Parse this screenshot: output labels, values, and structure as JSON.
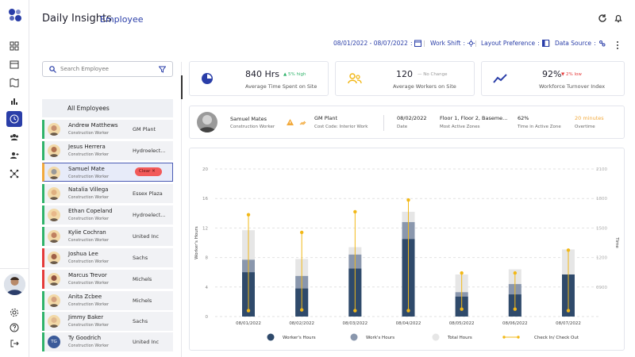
{
  "header": {
    "title": "Daily Insights",
    "subtitle": "Employee"
  },
  "toolbar": {
    "date_range": "08/01/2022 - 08/07/2022",
    "work_shift": "Work Shift",
    "layout_pref": "Layout Preference",
    "data_source": "Data Source"
  },
  "search": {
    "placeholder": "Search Employee"
  },
  "list": {
    "all_label": "All Employees"
  },
  "employees": [
    {
      "name": "Andrew Matthews",
      "role": "Construction Worker",
      "company": "GM Plant",
      "status": "green"
    },
    {
      "name": "Jesus Herrera",
      "role": "Construction Worker",
      "company": "Hydroelect...",
      "status": "green"
    },
    {
      "name": "Samuel Mate",
      "role": "Construction Worker",
      "company": "",
      "status": "orange",
      "selected": true,
      "clear_label": "Clear"
    },
    {
      "name": "Natalia Villega",
      "role": "Construction Worker",
      "company": "Essex Plaza",
      "status": "green"
    },
    {
      "name": "Ethan Copeland",
      "role": "Construction Worker",
      "company": "Hydroelect...",
      "status": "green"
    },
    {
      "name": "Kylie Cochran",
      "role": "Construction Worker",
      "company": "United Inc",
      "status": "green"
    },
    {
      "name": "Joshua Lee",
      "role": "Construction Worker",
      "company": "Sachs",
      "status": "red"
    },
    {
      "name": "Marcus Trevor",
      "role": "Construction Worker",
      "company": "Michels",
      "status": "red"
    },
    {
      "name": "Anita Zcbee",
      "role": "Construction Worker",
      "company": "Michels",
      "status": "green"
    },
    {
      "name": "Jimmy Baker",
      "role": "Construction Worker",
      "company": "Sachs",
      "status": "green"
    },
    {
      "name": "Ty Goodrich",
      "role": "Construction Worker",
      "company": "United Inc",
      "status": "green",
      "initials": "TG"
    }
  ],
  "kpis": [
    {
      "value": "840 Hrs",
      "delta": "5% high",
      "delta_color": "#2fb36a",
      "label": "Average Time Spent on Site"
    },
    {
      "value": "120",
      "delta": "No Change",
      "delta_color": "#999999",
      "label": "Average Workers on Site"
    },
    {
      "value": "92%",
      "delta": "2% low",
      "delta_color": "#e53a3a",
      "label": "Workforce Turnover Index"
    }
  ],
  "detail": {
    "name": "Samuel Mates",
    "role": "Construction Worker",
    "site": "GM Plant",
    "cost_code": "Cost Code: Interior Work",
    "date": "08/02/2022",
    "date_label": "Date",
    "zones": "Floor 1, Floor 2, Baseme...",
    "zones_label": "Most Active Zones",
    "pct": "62%",
    "pct_label": "Time in Active Zone",
    "overtime": "20 minutes",
    "overtime_label": "Overtime"
  },
  "colors": {
    "accent": "#2a3ea8",
    "worker": "#2f4a6b",
    "work": "#8a97ad",
    "total": "#e6e6e6",
    "check": "#f2b818"
  },
  "chart_data": {
    "type": "bar",
    "categories": [
      "08/01/2022",
      "08/02/2022",
      "08/03/2022",
      "08/04/2022",
      "08/05/2022",
      "08/06/2022",
      "08/07/2022"
    ],
    "ylabel": "Worker's Hours",
    "y2label": "Time",
    "ylim": [
      0,
      20
    ],
    "yticks": [
      "0",
      "4",
      "8",
      "12",
      "16",
      "20"
    ],
    "y2ticks": [
      "0900",
      "1200",
      "1500",
      "1800",
      "2100"
    ],
    "series": [
      {
        "name": "Worker's Hours",
        "values": [
          6.0,
          3.8,
          6.5,
          10.5,
          2.7,
          3.0,
          5.7
        ]
      },
      {
        "name": "Work's Hours",
        "values": [
          7.7,
          5.5,
          8.4,
          12.8,
          3.3,
          4.4,
          5.7
        ]
      },
      {
        "name": "Total Hours",
        "values": [
          11.7,
          7.8,
          9.4,
          14.2,
          5.7,
          6.4,
          9.1
        ]
      }
    ],
    "checkinout": {
      "name": "Check In/ Check Out",
      "values": [
        [
          0.8,
          13.8
        ],
        [
          0.9,
          11.4
        ],
        [
          0.8,
          14.2
        ],
        [
          0.8,
          15.8
        ],
        [
          1.0,
          5.9
        ],
        [
          1.0,
          5.9
        ],
        [
          0.8,
          9.0
        ]
      ]
    },
    "grid": true,
    "legend_position": "bottom"
  }
}
